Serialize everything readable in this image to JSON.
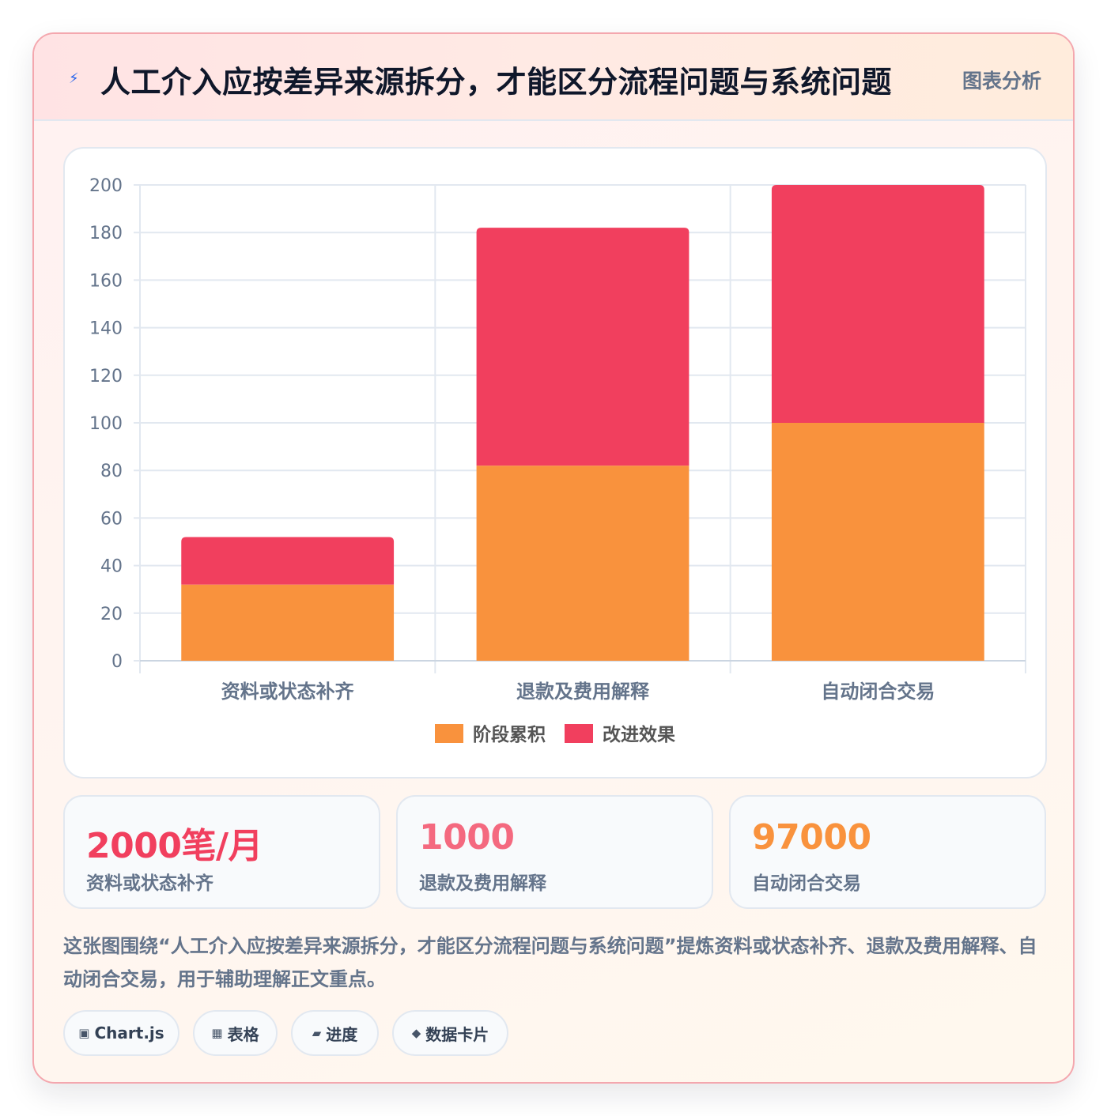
{
  "header": {
    "icon": "lightning-icon",
    "title": "人工介入应按差异来源拆分，才能区分流程问题与系统问题",
    "tag": "图表分析"
  },
  "chart_data": {
    "type": "bar",
    "stacked": true,
    "categories": [
      "资料或状态补齐",
      "退款及费用解释",
      "自动闭合交易"
    ],
    "series": [
      {
        "name": "阶段累积",
        "color": "#f9923d",
        "values": [
          32,
          82,
          100
        ]
      },
      {
        "name": "改进效果",
        "color": "#f13f5e",
        "values": [
          20,
          100,
          100
        ]
      }
    ],
    "ylim": [
      0,
      200
    ],
    "yticks": [
      0,
      20,
      40,
      60,
      80,
      100,
      120,
      140,
      160,
      180,
      200
    ],
    "grid": true,
    "legend": "bottom"
  },
  "stats": [
    {
      "value": "2000笔/月",
      "label": "资料或状态补齐",
      "color": "#f13f5e"
    },
    {
      "value": "1000",
      "label": "退款及费用解释",
      "color": "#f4697f"
    },
    {
      "value": "97000",
      "label": "自动闭合交易",
      "color": "#f9923d"
    }
  ],
  "description": "这张图围绕“人工介入应按差异来源拆分，才能区分流程问题与系统问题”提炼资料或状态补齐、退款及费用解释、自动闭合交易，用于辅助理解正文重点。",
  "chips": [
    {
      "icon": "▣",
      "icon_name": "chart-icon",
      "label": "Chart.js"
    },
    {
      "icon": "▦",
      "icon_name": "table-icon",
      "label": "表格"
    },
    {
      "icon": "▰",
      "icon_name": "progress-icon",
      "label": "进度"
    },
    {
      "icon": "◆",
      "icon_name": "diamond-icon",
      "label": "数据卡片"
    }
  ]
}
